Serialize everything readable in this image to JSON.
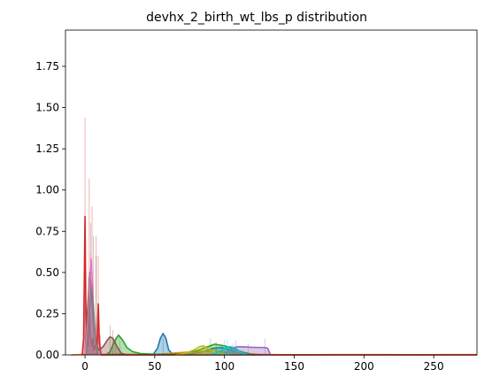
{
  "chart_data": {
    "type": "area",
    "title": "devhx_2_birth_wt_lbs_p distribution",
    "xlabel": "",
    "ylabel": "",
    "xlim": [
      -14,
      281
    ],
    "ylim": [
      0,
      1.97
    ],
    "xticks": [
      0,
      50,
      100,
      150,
      200,
      250
    ],
    "yticks": [
      0.0,
      0.25,
      0.5,
      0.75,
      1.0,
      1.25,
      1.5,
      1.75
    ],
    "xtick_labels": [
      "0",
      "50",
      "100",
      "150",
      "200",
      "250"
    ],
    "ytick_labels": [
      "0.00",
      "0.25",
      "0.50",
      "0.75",
      "1.00",
      "1.25",
      "1.50",
      "1.75"
    ],
    "grid": false,
    "legend": "none",
    "series": [
      {
        "color": "#1f77b4",
        "kde": [
          [
            45,
            0
          ],
          [
            49,
            0.005
          ],
          [
            52,
            0.04
          ],
          [
            54,
            0.1
          ],
          [
            56,
            0.13
          ],
          [
            58,
            0.1
          ],
          [
            60,
            0.03
          ],
          [
            63,
            0.004
          ],
          [
            66,
            0.003
          ],
          [
            75,
            0.005
          ],
          [
            85,
            0.02
          ],
          [
            92,
            0.04
          ],
          [
            98,
            0.045
          ],
          [
            104,
            0.03
          ],
          [
            110,
            0.012
          ],
          [
            116,
            0.003
          ],
          [
            122,
            0
          ]
        ],
        "bars": [
          [
            56,
            0.1
          ],
          [
            94,
            0.05
          ],
          [
            98,
            0.06
          ]
        ]
      },
      {
        "color": "#ff7f0e",
        "kde": [
          [
            -10,
            0
          ],
          [
            0,
            0.003
          ],
          [
            20,
            0.004
          ],
          [
            40,
            0.003
          ],
          [
            55,
            0.005
          ],
          [
            65,
            0.012
          ],
          [
            75,
            0.018
          ],
          [
            85,
            0.022
          ],
          [
            95,
            0.02
          ],
          [
            105,
            0.015
          ],
          [
            115,
            0.008
          ],
          [
            125,
            0.003
          ],
          [
            140,
            0.001
          ],
          [
            160,
            0.001
          ],
          [
            200,
            0.002
          ],
          [
            240,
            0.001
          ],
          [
            281,
            0.002
          ]
        ],
        "bars": [
          [
            80,
            0.02
          ],
          [
            90,
            0.02
          ],
          [
            100,
            0.018
          ]
        ]
      },
      {
        "color": "#2ca02c",
        "kde": [
          [
            15,
            0
          ],
          [
            18,
            0.02
          ],
          [
            21,
            0.08
          ],
          [
            24,
            0.12
          ],
          [
            27,
            0.09
          ],
          [
            30,
            0.045
          ],
          [
            34,
            0.02
          ],
          [
            40,
            0.008
          ],
          [
            50,
            0.004
          ],
          [
            60,
            0.004
          ],
          [
            70,
            0.008
          ],
          [
            80,
            0.025
          ],
          [
            88,
            0.05
          ],
          [
            93,
            0.065
          ],
          [
            100,
            0.055
          ],
          [
            107,
            0.035
          ],
          [
            114,
            0.015
          ],
          [
            120,
            0.004
          ],
          [
            126,
            0
          ]
        ],
        "bars": [
          [
            22,
            0.11
          ],
          [
            25,
            0.1
          ],
          [
            90,
            0.1
          ],
          [
            94,
            0.08
          ]
        ]
      },
      {
        "color": "#d62728",
        "kde": [
          [
            -2,
            0
          ],
          [
            -1,
            0.1
          ],
          [
            0,
            0.84
          ],
          [
            0.6,
            0.3
          ],
          [
            1.2,
            0.1
          ],
          [
            2,
            0.05
          ],
          [
            3,
            0.33
          ],
          [
            3.8,
            0.12
          ],
          [
            4.6,
            0.05
          ],
          [
            5.5,
            0.1
          ],
          [
            6.5,
            0.03
          ],
          [
            7.5,
            0.06
          ],
          [
            8.5,
            0.03
          ],
          [
            9.5,
            0.31
          ],
          [
            10.3,
            0.08
          ],
          [
            11.5,
            0
          ],
          [
            30,
            0
          ],
          [
            60,
            0
          ],
          [
            100,
            0
          ],
          [
            150,
            0
          ],
          [
            200,
            0
          ],
          [
            281,
            0
          ]
        ],
        "bars": [
          [
            0,
            1.44
          ],
          [
            3,
            1.07
          ],
          [
            5,
            0.9
          ],
          [
            8,
            0.72
          ],
          [
            9.5,
            0.6
          ],
          [
            11,
            0.12
          ]
        ]
      },
      {
        "color": "#9467bd",
        "kde": [
          [
            98,
            0
          ],
          [
            101,
            0.01
          ],
          [
            104,
            0.03
          ],
          [
            107,
            0.045
          ],
          [
            110,
            0.05
          ],
          [
            115,
            0.048
          ],
          [
            120,
            0.046
          ],
          [
            125,
            0.045
          ],
          [
            129,
            0.045
          ],
          [
            131,
            0.04
          ],
          [
            133,
            0
          ]
        ],
        "bars": [
          [
            108,
            0.09
          ],
          [
            117,
            0.07
          ],
          [
            129,
            0.1
          ]
        ]
      },
      {
        "color": "#8c564b",
        "kde": [
          [
            0,
            0
          ],
          [
            2,
            0.3
          ],
          [
            3.5,
            0.5
          ],
          [
            4.5,
            0.4
          ],
          [
            5.5,
            0.25
          ],
          [
            7,
            0.08
          ],
          [
            10,
            0.03
          ],
          [
            13,
            0.05
          ],
          [
            16,
            0.09
          ],
          [
            18,
            0.11
          ],
          [
            20,
            0.1
          ],
          [
            23,
            0.05
          ],
          [
            26,
            0.01
          ],
          [
            30,
            0
          ]
        ],
        "bars": [
          [
            4,
            0.8
          ],
          [
            6,
            0.72
          ],
          [
            8,
            0.6
          ],
          [
            18,
            0.18
          ],
          [
            20,
            0.15
          ]
        ]
      },
      {
        "color": "#e377c2",
        "kde": [
          [
            0,
            0
          ],
          [
            2,
            0.2
          ],
          [
            3.5,
            0.45
          ],
          [
            4.5,
            0.58
          ],
          [
            5.5,
            0.4
          ],
          [
            7,
            0.1
          ],
          [
            9,
            0.02
          ],
          [
            11,
            0
          ]
        ],
        "bars": [
          [
            4,
            0.62
          ],
          [
            5,
            0.5
          ]
        ]
      },
      {
        "color": "#bcbd22",
        "kde": [
          [
            65,
            0
          ],
          [
            72,
            0.01
          ],
          [
            78,
            0.03
          ],
          [
            82,
            0.05
          ],
          [
            85,
            0.055
          ],
          [
            88,
            0.04
          ],
          [
            92,
            0.02
          ],
          [
            98,
            0.005
          ],
          [
            104,
            0
          ]
        ],
        "bars": [
          [
            84,
            0.06
          ],
          [
            86,
            0.05
          ]
        ]
      },
      {
        "color": "#17becf",
        "kde": [
          [
            90,
            0
          ],
          [
            95,
            0.015
          ],
          [
            100,
            0.04
          ],
          [
            104,
            0.05
          ],
          [
            108,
            0.04
          ],
          [
            112,
            0.015
          ],
          [
            116,
            0
          ]
        ],
        "bars": [
          [
            100,
            0.09
          ],
          [
            102,
            0.09
          ],
          [
            106,
            0.07
          ]
        ]
      },
      {
        "color": "#7f7f7f",
        "kde": [
          [
            1,
            0
          ],
          [
            3,
            0.25
          ],
          [
            4.5,
            0.4
          ],
          [
            6,
            0.3
          ],
          [
            7.5,
            0.1
          ],
          [
            9,
            0
          ]
        ],
        "bars": [
          [
            2.5,
            0.47
          ],
          [
            5.5,
            0.42
          ]
        ]
      }
    ]
  }
}
